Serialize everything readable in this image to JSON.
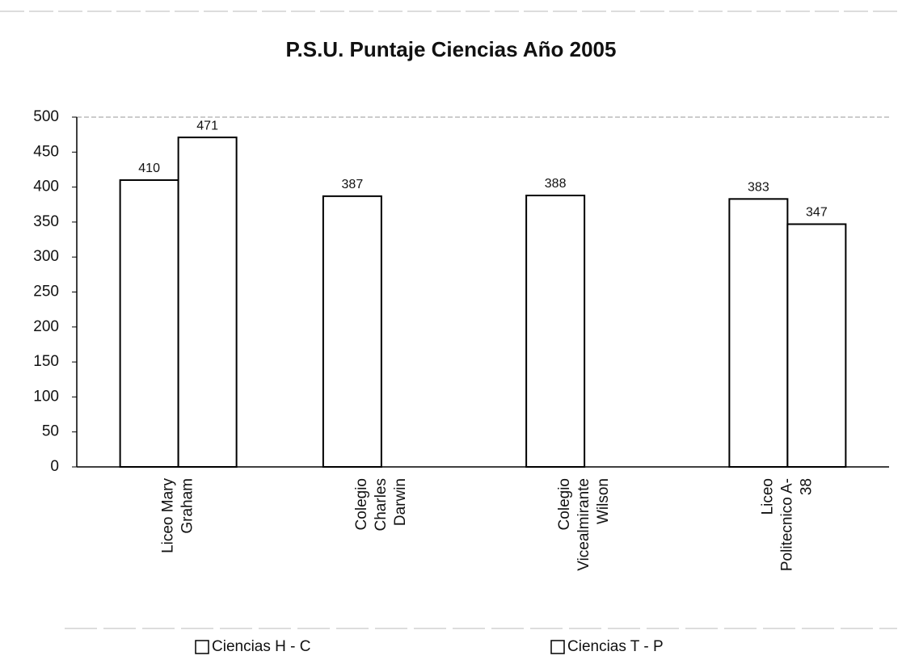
{
  "chart_data": {
    "type": "bar",
    "title": "P.S.U. Puntaje Ciencias Año 2005",
    "categories": [
      [
        "Liceo Mary",
        "Graham"
      ],
      [
        "Colegio",
        "Charles",
        "Darwin"
      ],
      [
        "Colegio",
        "Vicealmirante",
        "Wilson"
      ],
      [
        "Liceo",
        "Politecnico A-",
        "38"
      ]
    ],
    "series": [
      {
        "name": "Ciencias H - C",
        "color": "#ffffff",
        "values": [
          410,
          387,
          388,
          383
        ]
      },
      {
        "name": "Ciencias T - P",
        "color": "#ffffff",
        "values": [
          471,
          null,
          null,
          347
        ]
      }
    ],
    "ylim": [
      0,
      500
    ],
    "yticks": [
      0,
      50,
      100,
      150,
      200,
      250,
      300,
      350,
      400,
      450,
      500
    ],
    "grid": false,
    "legend": "bottom"
  }
}
